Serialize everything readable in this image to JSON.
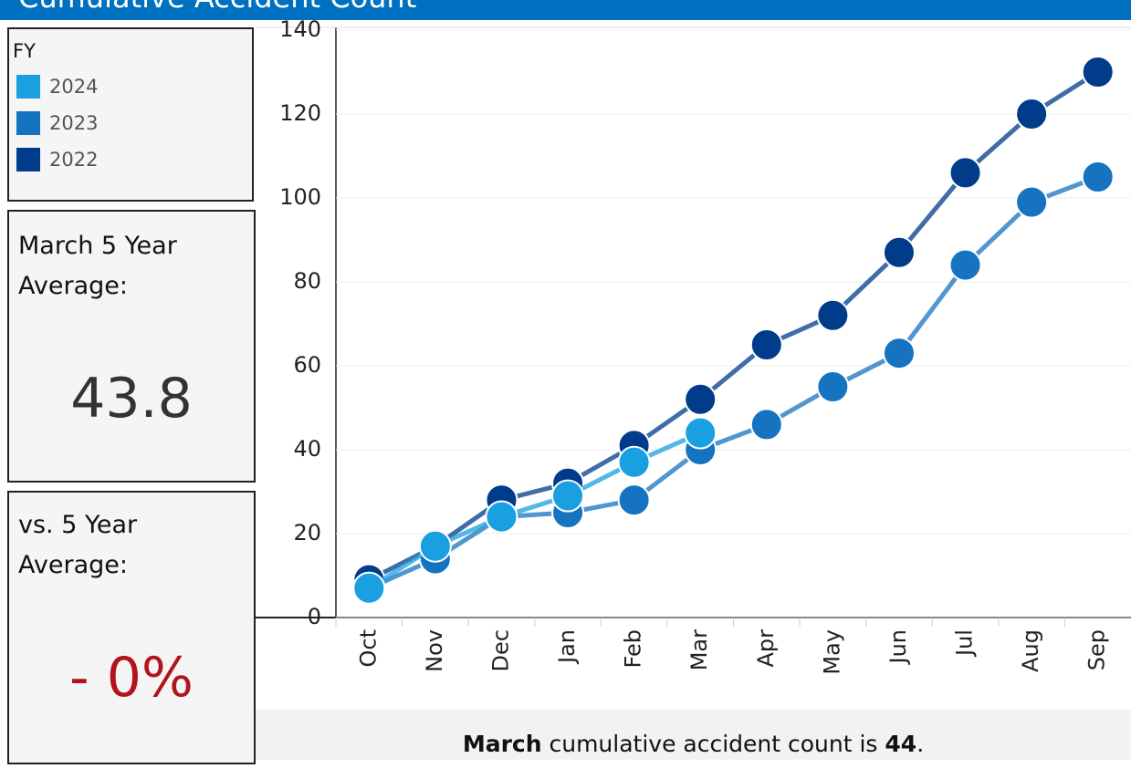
{
  "header": {
    "title": "Cumulative Accident Count"
  },
  "legend": {
    "title": "FY"
  },
  "kpi_average": {
    "label": "March 5 Year Average:",
    "value": "43.8"
  },
  "kpi_versus": {
    "label": "vs. 5 Year Average:",
    "value": "- 0%"
  },
  "caption": {
    "month": "March",
    "text": " cumulative accident count is ",
    "value": "44",
    "end": "."
  },
  "chart_data": {
    "type": "line",
    "categories": [
      "Oct",
      "Nov",
      "Dec",
      "Jan",
      "Feb",
      "Mar",
      "Apr",
      "May",
      "Jun",
      "Jul",
      "Aug",
      "Sep"
    ],
    "series": [
      {
        "name": "2024",
        "color": "#1a9fe0",
        "values": [
          7,
          17,
          24,
          29,
          37,
          44,
          null,
          null,
          null,
          null,
          null,
          null
        ]
      },
      {
        "name": "2023",
        "color": "#1673c0",
        "values": [
          7,
          14,
          24,
          25,
          28,
          40,
          46,
          55,
          63,
          84,
          99,
          105
        ]
      },
      {
        "name": "2022",
        "color": "#003c8a",
        "values": [
          9,
          17,
          28,
          32,
          41,
          52,
          65,
          72,
          87,
          106,
          120,
          130
        ]
      }
    ],
    "ylim": [
      0,
      140
    ],
    "yticks": [
      0,
      20,
      40,
      60,
      80,
      100,
      120,
      140
    ],
    "grid": true
  }
}
